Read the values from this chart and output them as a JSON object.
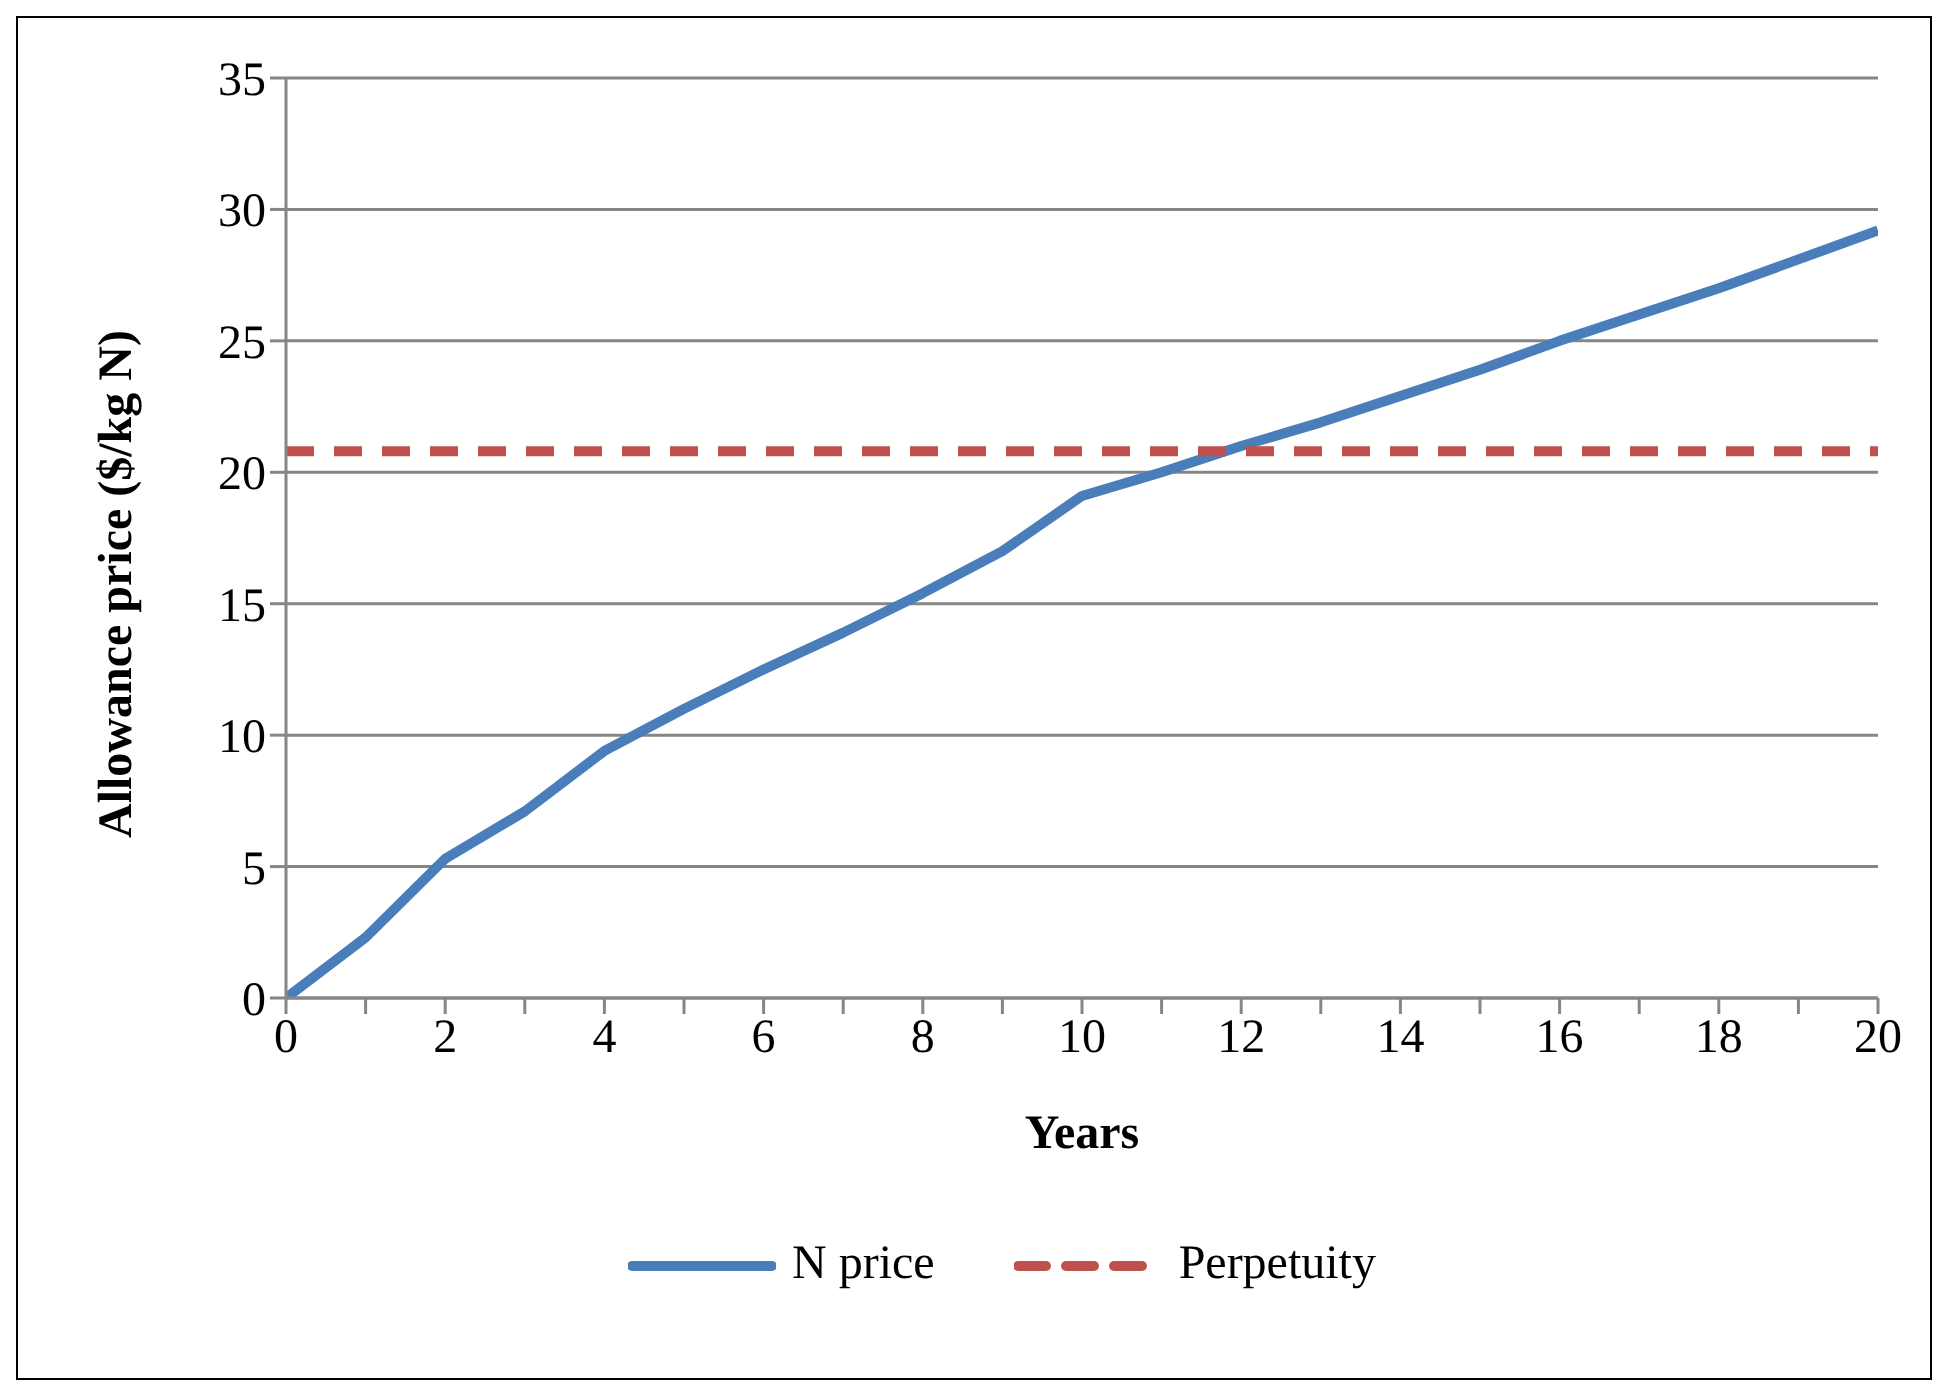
{
  "chart_data": {
    "type": "line",
    "xlabel": "Years",
    "ylabel": "Allowance price ($/kg N)",
    "x": [
      0,
      1,
      2,
      3,
      4,
      5,
      6,
      7,
      8,
      9,
      10,
      11,
      12,
      13,
      14,
      15,
      16,
      17,
      18,
      19,
      20
    ],
    "series": [
      {
        "name": "N price",
        "color": "#4a7ebb",
        "line_style": "solid",
        "values": [
          0,
          2.3,
          5.3,
          7.1,
          9.4,
          11.0,
          12.5,
          13.9,
          15.4,
          17.0,
          19.1,
          20.0,
          21.0,
          21.9,
          22.9,
          23.9,
          25.0,
          26.0,
          27.0,
          28.1,
          29.2
        ]
      },
      {
        "name": "Perpetuity",
        "color": "#c0504d",
        "line_style": "dashed",
        "values": [
          20.8,
          20.8,
          20.8,
          20.8,
          20.8,
          20.8,
          20.8,
          20.8,
          20.8,
          20.8,
          20.8,
          20.8,
          20.8,
          20.8,
          20.8,
          20.8,
          20.8,
          20.8,
          20.8,
          20.8,
          20.8
        ]
      }
    ],
    "xlim": [
      0,
      20
    ],
    "xticks": [
      0,
      {
        "value": 1,
        "label": null
      },
      2,
      {
        "value": 3,
        "label": null
      },
      4,
      {
        "value": 5,
        "label": null
      },
      6,
      {
        "value": 7,
        "label": null
      },
      8,
      {
        "value": 9,
        "label": null
      },
      10,
      {
        "value": 11,
        "label": null
      },
      12,
      {
        "value": 13,
        "label": null
      },
      14,
      {
        "value": 15,
        "label": null
      },
      16,
      {
        "value": 17,
        "label": null
      },
      18,
      {
        "value": 19,
        "label": null
      },
      20
    ],
    "ylim": [
      0,
      35
    ],
    "yticks": [
      0,
      5,
      10,
      15,
      20,
      25,
      30,
      35
    ],
    "grid": "y",
    "legend": "bottom",
    "marker": "none"
  }
}
